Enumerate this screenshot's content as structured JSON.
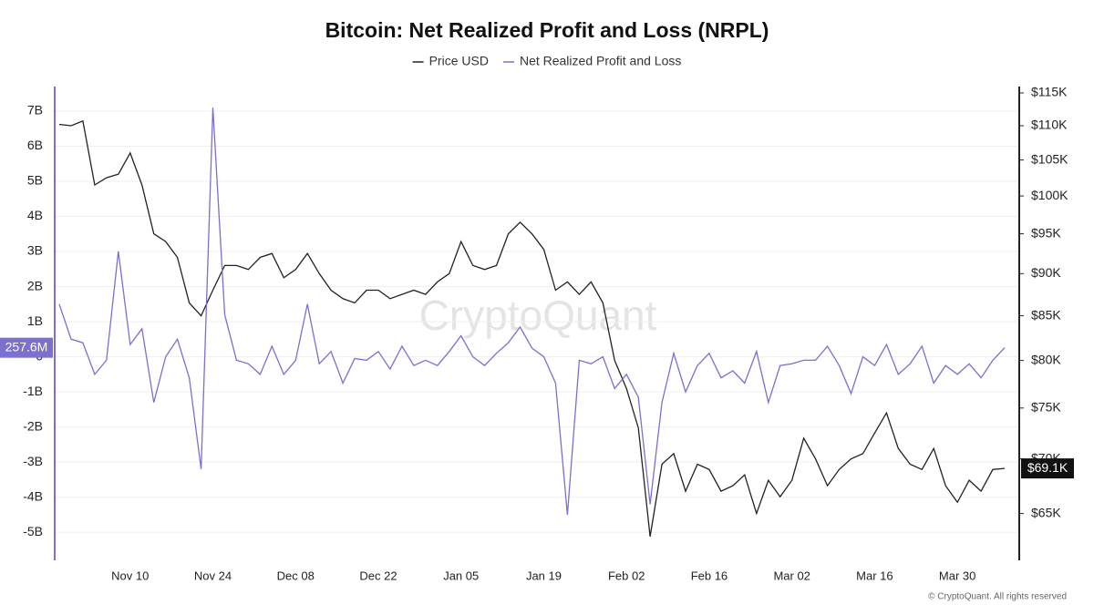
{
  "chart_data": {
    "type": "line",
    "title": "Bitcoin: Net Realized Profit and Loss (NRPL)",
    "watermark": "CryptoQuant",
    "footer": "© CryptoQuant. All rights reserved",
    "categories": [
      null,
      null,
      null,
      null,
      null,
      null,
      "Nov 10",
      null,
      null,
      null,
      null,
      null,
      null,
      "Nov 24",
      null,
      null,
      null,
      null,
      null,
      null,
      "Dec 08",
      null,
      null,
      null,
      null,
      null,
      null,
      "Dec 22",
      null,
      null,
      null,
      null,
      null,
      null,
      "Jan 05",
      null,
      null,
      null,
      null,
      null,
      null,
      "Jan 19",
      null,
      null,
      null,
      null,
      null,
      null,
      "Feb 02",
      null,
      null,
      null,
      null,
      null,
      null,
      "Feb 16",
      null,
      null,
      null,
      null,
      null,
      null,
      "Mar 02",
      null,
      null,
      null,
      null,
      null,
      null,
      "Mar 16",
      null,
      null,
      null,
      null,
      null,
      null,
      "Mar 30",
      null,
      null,
      null,
      null
    ],
    "series": [
      {
        "name": "Price USD",
        "color": "#222222",
        "axis": "y2",
        "last_label": "$69.1K",
        "values": [
          110200,
          110000,
          110700,
          101500,
          102500,
          103000,
          106000,
          101500,
          95000,
          94000,
          92000,
          86500,
          85000,
          88000,
          91000,
          91000,
          90500,
          92000,
          92500,
          89500,
          90500,
          92500,
          90000,
          88000,
          87000,
          86500,
          88000,
          88000,
          87000,
          87500,
          88000,
          87500,
          89000,
          90000,
          94000,
          91000,
          90500,
          91000,
          95000,
          96500,
          95000,
          93000,
          88000,
          89000,
          87500,
          89000,
          86500,
          80000,
          77000,
          73000,
          63000,
          69500,
          70500,
          67000,
          69500,
          69000,
          67000,
          67500,
          68500,
          65000,
          68000,
          66500,
          68000,
          72000,
          70000,
          67500,
          69000,
          70000,
          70500,
          72500,
          74500,
          71000,
          69500,
          69000,
          71000,
          67500,
          66000,
          68000,
          67000,
          69000,
          69100
        ]
      },
      {
        "name": "Net Realized Profit and Loss",
        "color": "#7b6fd0",
        "axis": "y",
        "last_label": "257.6M",
        "values": [
          1.5,
          0.5,
          0.4,
          -0.5,
          -0.1,
          3.0,
          0.35,
          0.8,
          -1.3,
          0,
          0.5,
          -0.6,
          -3.2,
          7.1,
          1.2,
          -0.1,
          -0.2,
          -0.5,
          0.3,
          -0.5,
          -0.1,
          1.5,
          -0.2,
          0.15,
          -0.75,
          -0.05,
          -0.1,
          0.15,
          -0.35,
          0.3,
          -0.25,
          -0.1,
          -0.25,
          0.15,
          0.6,
          0,
          -0.25,
          0.1,
          0.4,
          0.85,
          0.25,
          0,
          -0.75,
          -4.5,
          -0.1,
          -0.2,
          0,
          -0.9,
          -0.5,
          -1.15,
          -4.2,
          -1.3,
          0.1,
          -1,
          -0.25,
          0.1,
          -0.6,
          -0.4,
          -0.75,
          0.15,
          -1.3,
          -0.25,
          -0.2,
          -0.1,
          -0.1,
          0.3,
          -0.25,
          -1.05,
          0,
          -0.25,
          0.35,
          -0.5,
          -0.2,
          0.3,
          -0.75,
          -0.25,
          -0.5,
          -0.2,
          -0.6,
          -0.1,
          0.2576
        ]
      }
    ],
    "ylim": [
      -5.8,
      7.7
    ],
    "yticks": [
      {
        "value": 7,
        "label": "7B"
      },
      {
        "value": 6,
        "label": "6B"
      },
      {
        "value": 5,
        "label": "5B"
      },
      {
        "value": 4,
        "label": "4B"
      },
      {
        "value": 3,
        "label": "3B"
      },
      {
        "value": 2,
        "label": "2B"
      },
      {
        "value": 1,
        "label": "1B"
      },
      0,
      {
        "value": -1,
        "label": "-1B"
      },
      {
        "value": -2,
        "label": "-2B"
      },
      {
        "value": -3,
        "label": "-3B"
      },
      {
        "value": -4,
        "label": "-4B"
      },
      {
        "value": -5,
        "label": "-5B"
      }
    ],
    "y2lim": [
      61000,
      116000
    ],
    "y2_log": true,
    "y2ticks": [
      {
        "value": 115000,
        "label": "$115K"
      },
      {
        "value": 110000,
        "label": "$110K"
      },
      {
        "value": 105000,
        "label": "$105K"
      },
      {
        "value": 100000,
        "label": "$100K"
      },
      {
        "value": 95000,
        "label": "$95K"
      },
      {
        "value": 90000,
        "label": "$90K"
      },
      {
        "value": 85000,
        "label": "$85K"
      },
      {
        "value": 80000,
        "label": "$80K"
      },
      {
        "value": 75000,
        "label": "$75K"
      },
      {
        "value": 70000,
        "label": "$70K"
      },
      {
        "value": 65000,
        "label": "$65K"
      }
    ],
    "grid": true
  }
}
